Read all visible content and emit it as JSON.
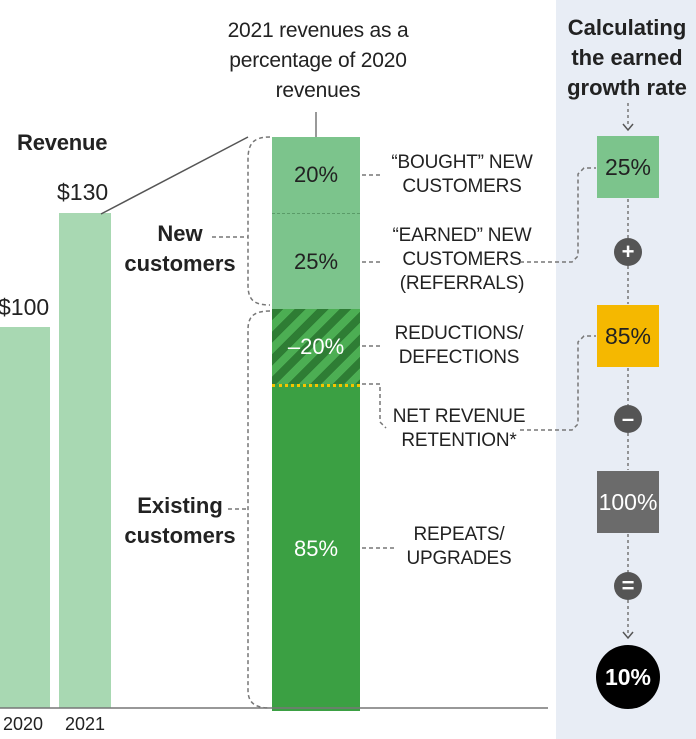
{
  "revenue": {
    "title": "Revenue",
    "bars": [
      {
        "year": "2020",
        "value": 100,
        "label": "$100"
      },
      {
        "year": "2021",
        "value": 130,
        "label": "$130"
      }
    ]
  },
  "column": {
    "header": "2021 revenues as a percentage of 2020 revenues",
    "segments": [
      {
        "label": "20%",
        "value": 20,
        "desc": "“BOUGHT” NEW CUSTOMERS"
      },
      {
        "label": "25%",
        "value": 25,
        "desc": "“EARNED” NEW CUSTOMERS (REFERRALS)"
      },
      {
        "label": "–20%",
        "value": -20,
        "desc": "REDUCTIONS/ DEFECTIONS"
      },
      {
        "label": "85%",
        "value": 85,
        "desc": "REPEATS/ UPGRADES"
      }
    ],
    "net_retention_label": "NET REVENUE RETENTION*",
    "group_new": "New customers",
    "group_existing": "Existing customers"
  },
  "calc": {
    "title": "Calculating the earned growth rate",
    "earned": "25%",
    "plus": "+",
    "nrr": "85%",
    "minus": "–",
    "base": "100%",
    "equals": "=",
    "result": "10%"
  },
  "colors": {
    "light_green": "#a8d8b2",
    "mid_green": "#7cc48c",
    "dark_green": "#3ba043",
    "yellow": "#f5b800",
    "gray": "#6b6b6b",
    "panel": "#e8edf5"
  }
}
